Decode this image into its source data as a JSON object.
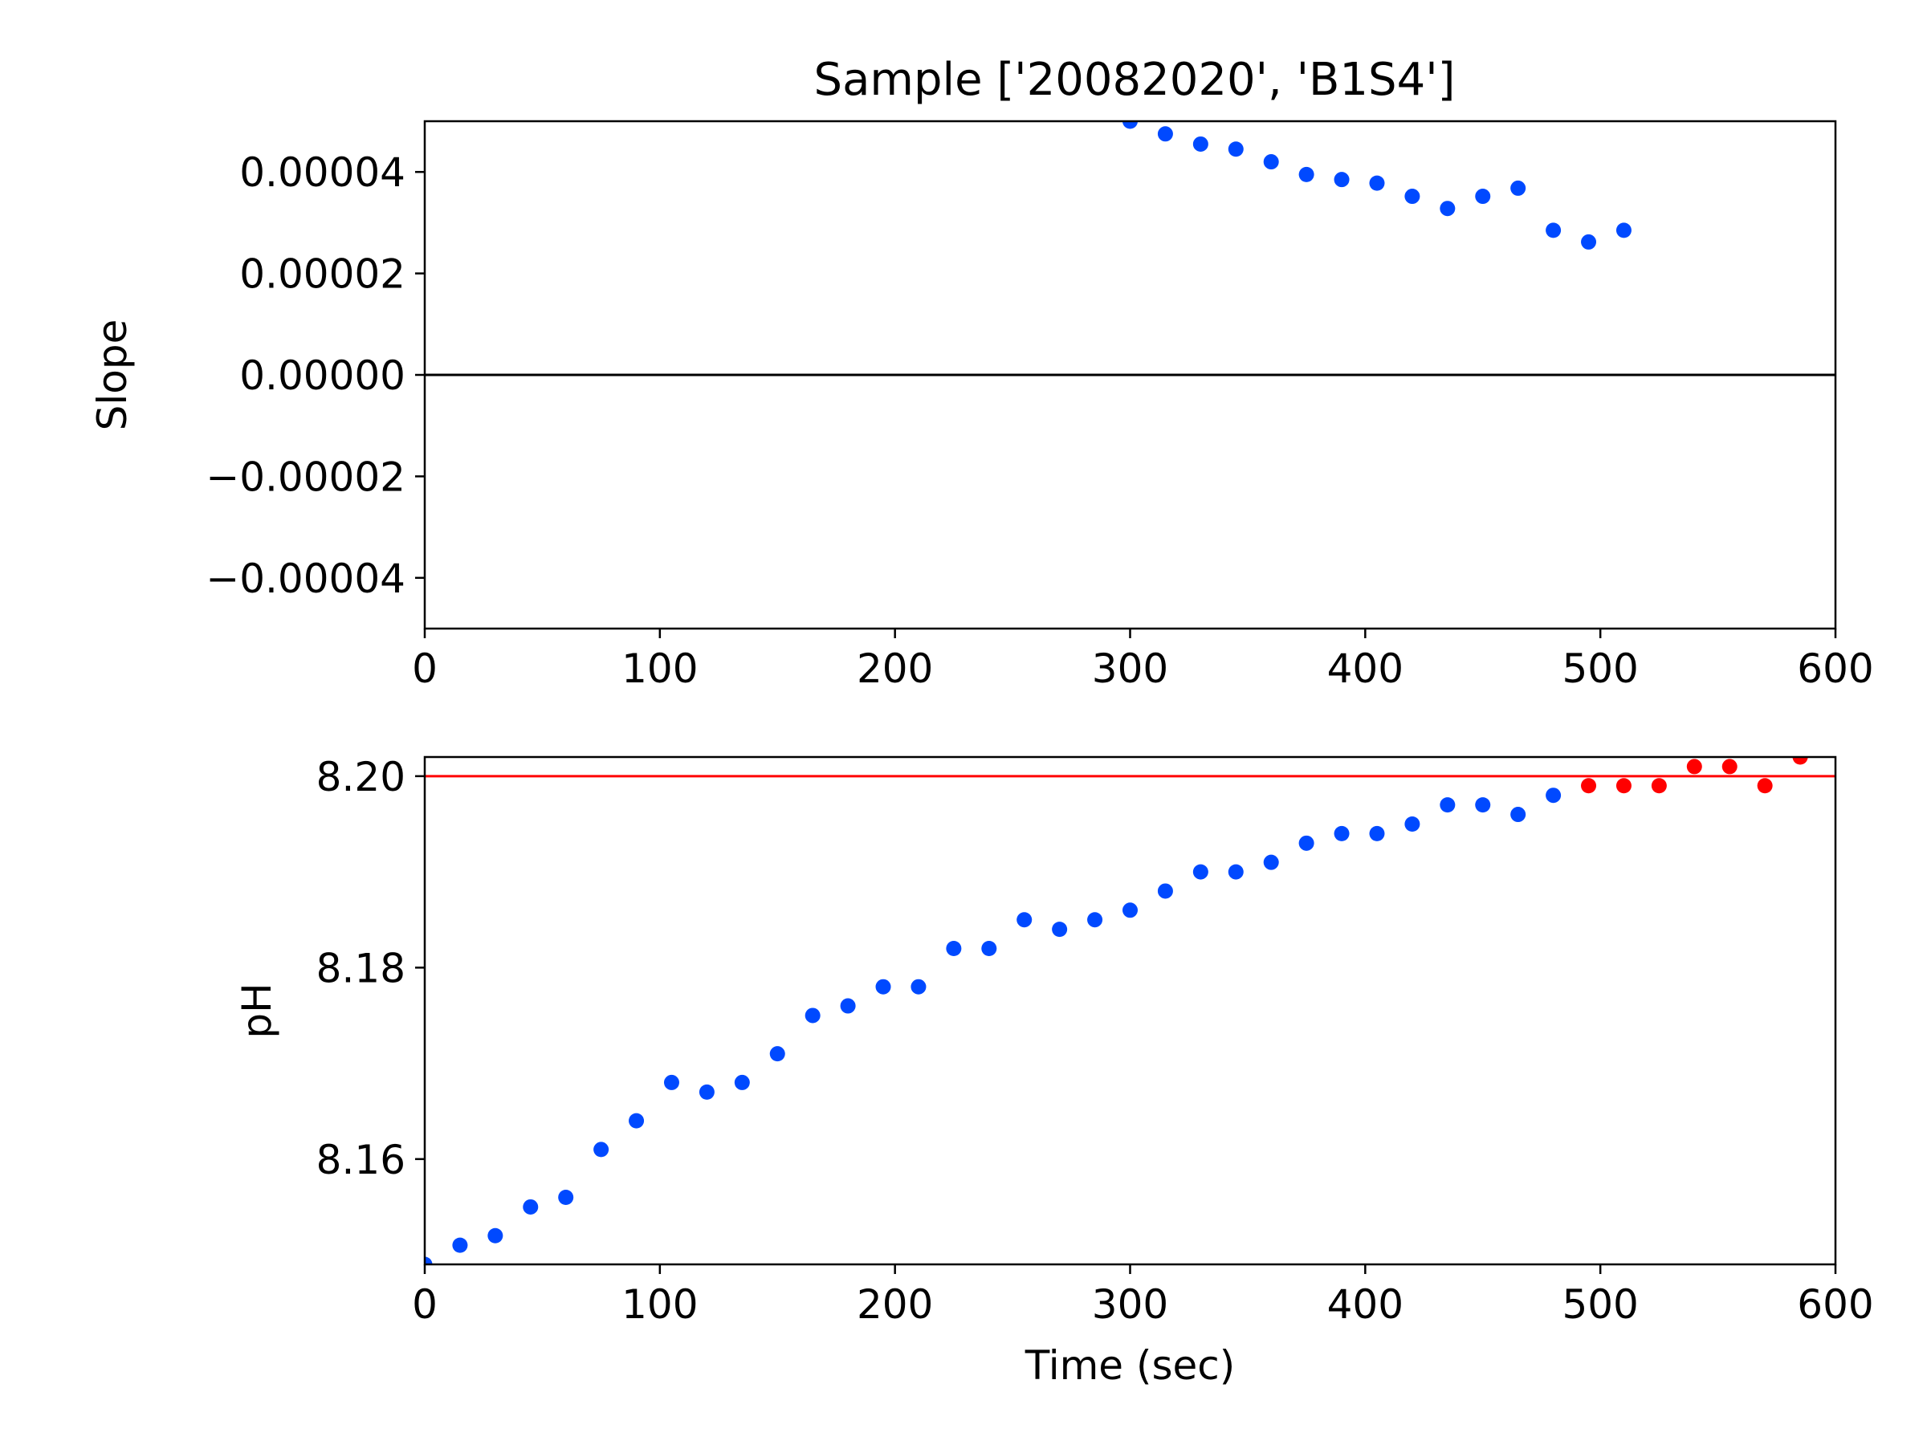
{
  "chart_data": [
    {
      "type": "scatter",
      "title": "Sample ['20082020', 'B1S4']",
      "xlabel": "",
      "ylabel": "Slope",
      "xlim": [
        0,
        600
      ],
      "ylim": [
        -5e-05,
        5e-05
      ],
      "xticks": [
        "0",
        "100",
        "200",
        "300",
        "400",
        "500",
        "600"
      ],
      "yticks": [
        "0.00004",
        "0.00002",
        "0.00000",
        "−0.00002",
        "−0.00004"
      ],
      "ytick_values": [
        4e-05,
        2e-05,
        0.0,
        -2e-05,
        -4e-05
      ],
      "hline": {
        "y": 0.0,
        "color": "#000000"
      },
      "series": [
        {
          "color": "#0049ff",
          "x": [
            300,
            315,
            330,
            345,
            360,
            375,
            390,
            405,
            420,
            435,
            450,
            465,
            480,
            495,
            510
          ],
          "y": [
            5e-05,
            4.75e-05,
            4.55e-05,
            4.45e-05,
            4.2e-05,
            3.95e-05,
            3.85e-05,
            3.78e-05,
            3.52e-05,
            3.28e-05,
            3.52e-05,
            3.68e-05,
            2.85e-05,
            2.62e-05,
            2.85e-05
          ]
        }
      ]
    },
    {
      "type": "scatter",
      "title": "",
      "xlabel": "Time (sec)",
      "ylabel": "pH",
      "xlim": [
        0,
        600
      ],
      "ylim": [
        8.149,
        8.202
      ],
      "xticks": [
        "0",
        "100",
        "200",
        "300",
        "400",
        "500",
        "600"
      ],
      "yticks": [
        "8.20",
        "8.18",
        "8.16"
      ],
      "ytick_values": [
        8.2,
        8.18,
        8.16
      ],
      "hline": {
        "y": 8.2,
        "color": "#ff0000"
      },
      "series": [
        {
          "color": "#0049ff",
          "x": [
            0,
            15,
            30,
            45,
            60,
            75,
            90,
            105,
            120,
            135,
            150,
            165,
            180,
            195,
            210,
            225,
            240,
            255,
            270,
            285,
            300,
            315,
            330,
            345,
            360,
            375,
            390,
            405,
            420,
            435,
            450,
            465,
            480
          ],
          "y": [
            8.149,
            8.151,
            8.152,
            8.155,
            8.156,
            8.161,
            8.164,
            8.168,
            8.167,
            8.168,
            8.171,
            8.175,
            8.176,
            8.178,
            8.178,
            8.182,
            8.182,
            8.185,
            8.184,
            8.185,
            8.186,
            8.188,
            8.19,
            8.19,
            8.191,
            8.193,
            8.194,
            8.194,
            8.195,
            8.197,
            8.197,
            8.196,
            8.198
          ]
        },
        {
          "color": "#ff0000",
          "x": [
            495,
            510,
            525,
            540,
            555,
            570,
            585
          ],
          "y": [
            8.199,
            8.199,
            8.199,
            8.201,
            8.201,
            8.199,
            8.202
          ]
        }
      ]
    }
  ]
}
